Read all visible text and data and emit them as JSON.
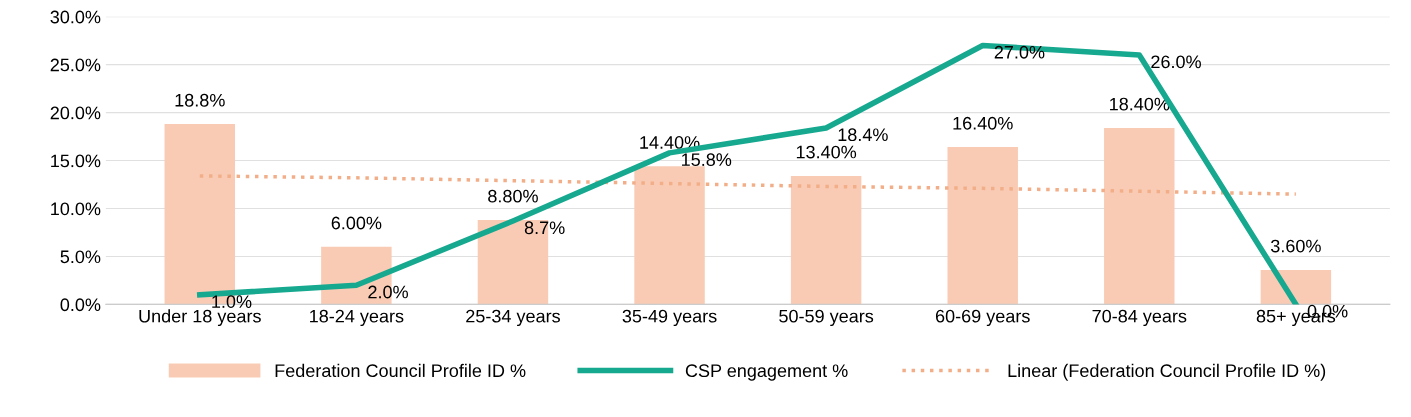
{
  "chart_data": {
    "type": "bar",
    "categories": [
      "Under 18 years",
      "18-24 years",
      "25-34 years",
      "35-49 years",
      "50-59 years",
      "60-69 years",
      "70-84 years",
      "85+ years"
    ],
    "series": [
      {
        "name": "Federation Council Profile ID %",
        "color": "#f9cbb4",
        "values": [
          18.8,
          6.0,
          8.8,
          14.4,
          13.4,
          16.4,
          18.4,
          3.6
        ],
        "value_labels": [
          "18.8%",
          "6.00%",
          "8.80%",
          "14.40%",
          "13.40%",
          "16.40%",
          "18.40%",
          "3.60%"
        ]
      },
      {
        "name": "CSP engagement %",
        "type": "line",
        "color": "#17a990",
        "line_style": "solid",
        "values": [
          1.0,
          2.0,
          8.7,
          15.8,
          18.4,
          27.0,
          26.0,
          0.0
        ],
        "value_labels": [
          "1.0%",
          "2.0%",
          "8.7%",
          "15.8%",
          "18.4%",
          "27.0%",
          "26.0%",
          "0.0%"
        ]
      },
      {
        "name": "Linear (Federation Council Profile ID %)",
        "type": "line",
        "color": "#f2ae88",
        "line_style": "dotted",
        "values": [
          13.4,
          13.2,
          12.9,
          12.6,
          12.3,
          12.1,
          11.8,
          11.5
        ]
      }
    ],
    "ylim": [
      0,
      30
    ],
    "yticks": [
      {
        "value": 0,
        "label": "0.0%"
      },
      {
        "value": 5,
        "label": "5.0%"
      },
      {
        "value": 10,
        "label": "10.0%"
      },
      {
        "value": 15,
        "label": "15.0%"
      },
      {
        "value": 20,
        "label": "20.0%"
      },
      {
        "value": 25,
        "label": "25.0%"
      },
      {
        "value": 30,
        "label": "30.0%"
      }
    ],
    "grid": "y",
    "legend": "bottom",
    "marker": "none"
  }
}
